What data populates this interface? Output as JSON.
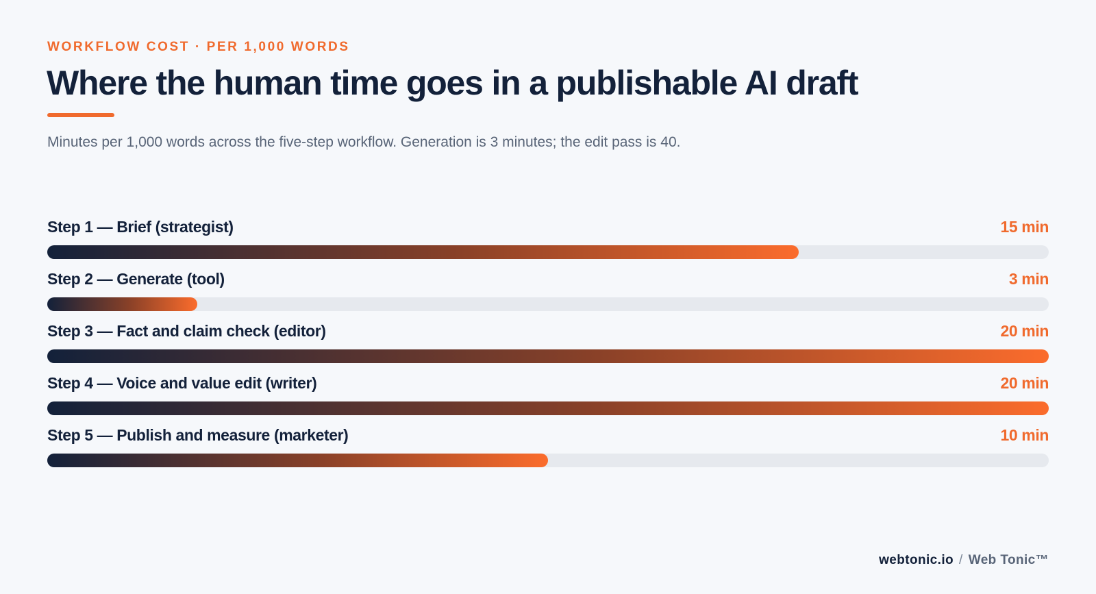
{
  "eyebrow": "WORKFLOW COST · PER 1,000 WORDS",
  "title": "Where the human time goes in a publishable AI draft",
  "subtitle": "Minutes per 1,000 words across the five-step workflow. Generation is 3 minutes; the edit pass is 40.",
  "colors": {
    "accent": "#f06a2d",
    "ink": "#13213a",
    "track": "#e6e9ee",
    "background": "#f6f8fb"
  },
  "chart_data": {
    "type": "bar",
    "orientation": "horizontal",
    "title": "Where the human time goes in a publishable AI draft",
    "xlabel": "",
    "ylabel": "",
    "xlim": [
      0,
      20
    ],
    "grid": false,
    "categories": [
      "Step 1 — Brief (strategist)",
      "Step 2 — Generate (tool)",
      "Step 3 — Fact and claim check (editor)",
      "Step 4 — Voice and value edit (writer)",
      "Step 5 — Publish and measure (marketer)"
    ],
    "values": [
      15,
      3,
      20,
      20,
      10
    ],
    "value_labels": [
      "15 min",
      "3 min",
      "20 min",
      "20 min",
      "10 min"
    ]
  },
  "footer": {
    "domain": "webtonic.io",
    "separator": "/",
    "brand": "Web Tonic™"
  }
}
